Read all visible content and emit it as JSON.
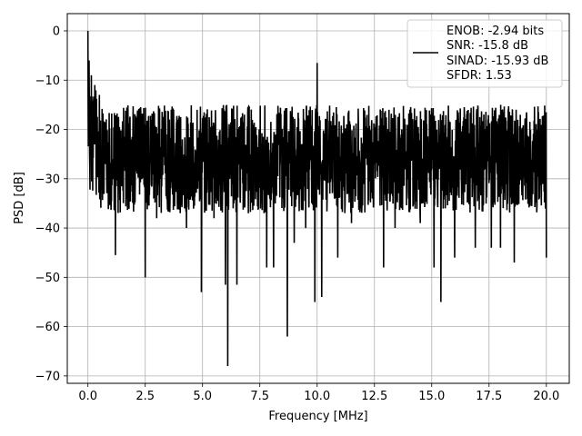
{
  "chart_data": {
    "type": "line",
    "title": "",
    "xlabel": "Frequency [MHz]",
    "ylabel": "PSD [dB]",
    "xlim": [
      -0.9,
      21.0
    ],
    "ylim": [
      -71.5,
      3.5
    ],
    "xticks": [
      0.0,
      2.5,
      5.0,
      7.5,
      10.0,
      12.5,
      15.0,
      17.5,
      20.0
    ],
    "xtick_labels": [
      "0.0",
      "2.5",
      "5.0",
      "7.5",
      "10.0",
      "12.5",
      "15.0",
      "17.5",
      "20.0"
    ],
    "yticks": [
      0,
      -10,
      -20,
      -30,
      -40,
      -50,
      -60,
      -70
    ],
    "ytick_labels": [
      "0",
      "−10",
      "−20",
      "−30",
      "−40",
      "−50",
      "−60",
      "−70"
    ],
    "grid": true,
    "legend_position": "top-right",
    "line_color": "#000000",
    "series": [
      {
        "name": "",
        "noise_floor_db": -26,
        "noise_band_db": [
          -37,
          -15
        ],
        "x_range": [
          0.0,
          20.0
        ],
        "features": [
          {
            "x": 0.0,
            "y": 0
          },
          {
            "x": 0.05,
            "y": -6
          },
          {
            "x": 0.15,
            "y": -9
          },
          {
            "x": 0.3,
            "y": -11
          },
          {
            "x": 0.5,
            "y": -13
          },
          {
            "x": 0.6,
            "y": -25
          },
          {
            "x": 1.0,
            "y": -33
          },
          {
            "x": 1.2,
            "y": -45.5
          },
          {
            "x": 2.5,
            "y": -50
          },
          {
            "x": 3.0,
            "y": -38
          },
          {
            "x": 4.3,
            "y": -40
          },
          {
            "x": 4.95,
            "y": -53
          },
          {
            "x": 5.5,
            "y": -38
          },
          {
            "x": 6.0,
            "y": -51.5
          },
          {
            "x": 6.1,
            "y": -68
          },
          {
            "x": 6.5,
            "y": -51.5
          },
          {
            "x": 7.0,
            "y": -37
          },
          {
            "x": 7.8,
            "y": -48
          },
          {
            "x": 8.1,
            "y": -48
          },
          {
            "x": 8.7,
            "y": -62
          },
          {
            "x": 9.0,
            "y": -43
          },
          {
            "x": 9.5,
            "y": -40
          },
          {
            "x": 9.9,
            "y": -55
          },
          {
            "x": 10.0,
            "y": -6.5
          },
          {
            "x": 10.2,
            "y": -54
          },
          {
            "x": 10.9,
            "y": -46
          },
          {
            "x": 11.5,
            "y": -39
          },
          {
            "x": 12.9,
            "y": -48
          },
          {
            "x": 13.4,
            "y": -40
          },
          {
            "x": 14.5,
            "y": -39
          },
          {
            "x": 15.1,
            "y": -48
          },
          {
            "x": 15.4,
            "y": -55
          },
          {
            "x": 16.0,
            "y": -46
          },
          {
            "x": 16.9,
            "y": -44
          },
          {
            "x": 17.6,
            "y": -44
          },
          {
            "x": 18.0,
            "y": -44
          },
          {
            "x": 18.6,
            "y": -47
          },
          {
            "x": 20.0,
            "y": -46
          }
        ]
      }
    ],
    "legend_lines": [
      "ENOB: -2.94 bits",
      "SNR: -15.8 dB",
      "SINAD: -15.93 dB",
      "SFDR: 1.53"
    ]
  }
}
